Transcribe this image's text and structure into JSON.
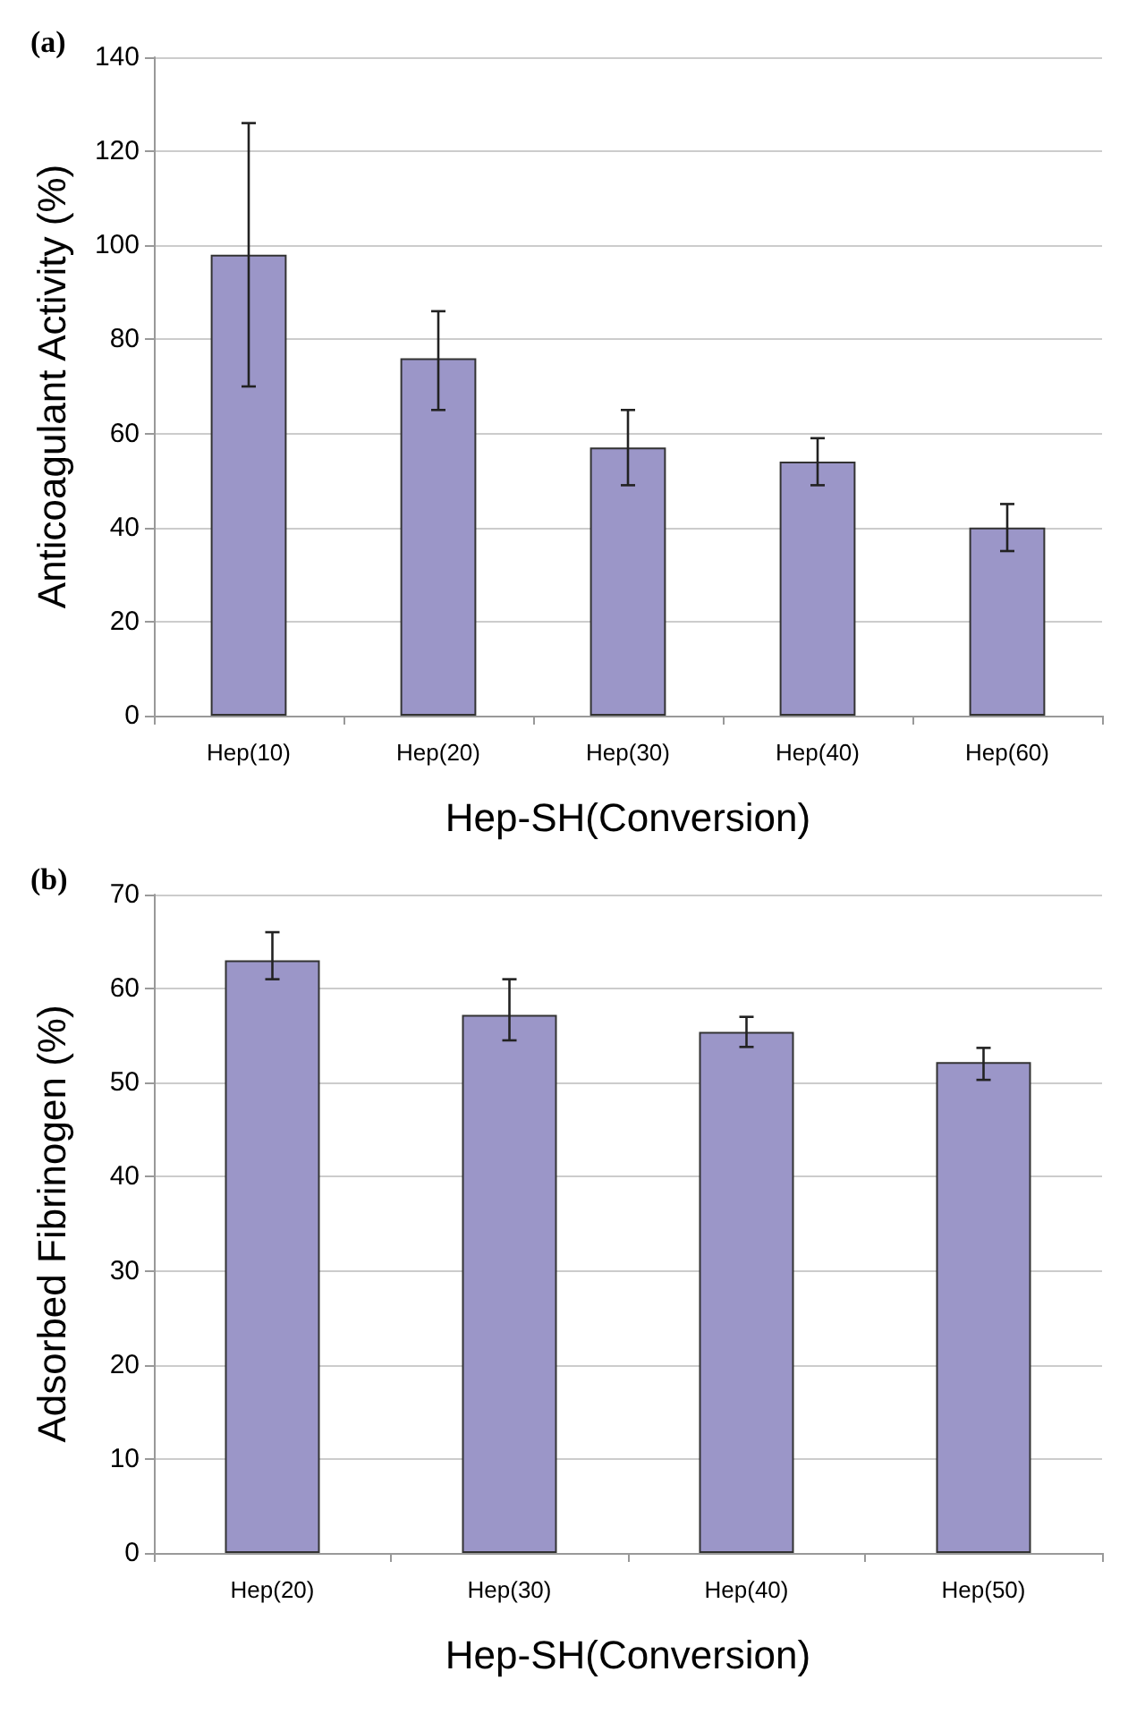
{
  "chart_data": [
    {
      "type": "bar",
      "title": "(a)",
      "xlabel": "Hep-SH(Conversion)",
      "ylabel": "Anticoagulant Activity (%)",
      "categories": [
        "Hep(10)",
        "Hep(20)",
        "Hep(30)",
        "Hep(40)",
        "Hep(60)"
      ],
      "values": [
        98,
        76,
        57,
        54,
        40
      ],
      "errors": [
        [
          70,
          126
        ],
        [
          65,
          86
        ],
        [
          49,
          65
        ],
        [
          49,
          59
        ],
        [
          35,
          45
        ]
      ],
      "color": "#9b96c8",
      "ylim": [
        0,
        140
      ],
      "yticks": [
        0,
        20,
        40,
        60,
        80,
        100,
        120,
        140
      ],
      "grid": "y"
    },
    {
      "type": "bar",
      "title": "(b)",
      "xlabel": "Hep-SH(Conversion)",
      "ylabel": "Adsorbed Fibrinogen (%)",
      "categories": [
        "Hep(20)",
        "Hep(30)",
        "Hep(40)",
        "Hep(50)"
      ],
      "values": [
        63,
        57.2,
        55.4,
        52.2
      ],
      "errors": [
        [
          61,
          66
        ],
        [
          54.5,
          61
        ],
        [
          53.8,
          57
        ],
        [
          50.3,
          53.7
        ]
      ],
      "color": "#9b96c8",
      "ylim": [
        0,
        70
      ],
      "yticks": [
        0,
        10,
        20,
        30,
        40,
        50,
        60,
        70
      ],
      "grid": "y"
    }
  ]
}
